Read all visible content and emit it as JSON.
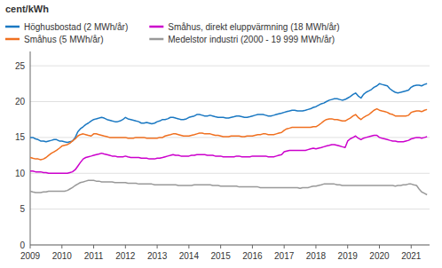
{
  "chart_data": {
    "type": "line",
    "title": "cent/kWh",
    "xlim": [
      2009.0,
      2021.58
    ],
    "ylim": [
      0,
      27
    ],
    "yticks": [
      0,
      5,
      10,
      15,
      20,
      25
    ],
    "xticks": [
      2009,
      2010,
      2011,
      2012,
      2013,
      2014,
      2015,
      2016,
      2017,
      2018,
      2019,
      2020,
      2021
    ],
    "grid": true,
    "legend": "top",
    "x": [
      2009.0,
      2009.08,
      2009.17,
      2009.25,
      2009.33,
      2009.42,
      2009.5,
      2009.58,
      2009.67,
      2009.75,
      2009.83,
      2009.92,
      2010.0,
      2010.08,
      2010.17,
      2010.25,
      2010.33,
      2010.42,
      2010.5,
      2010.58,
      2010.67,
      2010.75,
      2010.83,
      2010.92,
      2011.0,
      2011.08,
      2011.17,
      2011.25,
      2011.33,
      2011.42,
      2011.5,
      2011.58,
      2011.67,
      2011.75,
      2011.83,
      2011.92,
      2012.0,
      2012.08,
      2012.17,
      2012.25,
      2012.33,
      2012.42,
      2012.5,
      2012.58,
      2012.67,
      2012.75,
      2012.83,
      2012.92,
      2013.0,
      2013.08,
      2013.17,
      2013.25,
      2013.33,
      2013.42,
      2013.5,
      2013.58,
      2013.67,
      2013.75,
      2013.83,
      2013.92,
      2014.0,
      2014.08,
      2014.17,
      2014.25,
      2014.33,
      2014.42,
      2014.5,
      2014.58,
      2014.67,
      2014.75,
      2014.83,
      2014.92,
      2015.0,
      2015.08,
      2015.17,
      2015.25,
      2015.33,
      2015.42,
      2015.5,
      2015.58,
      2015.67,
      2015.75,
      2015.83,
      2015.92,
      2016.0,
      2016.08,
      2016.17,
      2016.25,
      2016.33,
      2016.42,
      2016.5,
      2016.58,
      2016.67,
      2016.75,
      2016.83,
      2016.92,
      2017.0,
      2017.08,
      2017.17,
      2017.25,
      2017.33,
      2017.42,
      2017.5,
      2017.58,
      2017.67,
      2017.75,
      2017.83,
      2017.92,
      2018.0,
      2018.08,
      2018.17,
      2018.25,
      2018.33,
      2018.42,
      2018.5,
      2018.58,
      2018.67,
      2018.75,
      2018.83,
      2018.92,
      2019.0,
      2019.08,
      2019.17,
      2019.25,
      2019.33,
      2019.42,
      2019.5,
      2019.58,
      2019.67,
      2019.75,
      2019.83,
      2019.92,
      2020.0,
      2020.08,
      2020.17,
      2020.25,
      2020.33,
      2020.42,
      2020.5,
      2020.58,
      2020.67,
      2020.75,
      2020.83,
      2020.92,
      2021.0,
      2021.08,
      2021.17,
      2021.25,
      2021.33,
      2021.42,
      2021.5
    ],
    "series": [
      {
        "name": "Höghusbostad (2 MWh/år)",
        "color": "#1a78c2",
        "values": [
          15.0,
          15.0,
          14.8,
          14.7,
          14.5,
          14.5,
          14.4,
          14.5,
          14.6,
          14.7,
          14.7,
          14.5,
          14.5,
          14.4,
          14.3,
          14.4,
          14.5,
          15.0,
          15.8,
          16.2,
          16.5,
          16.8,
          17.0,
          17.3,
          17.5,
          17.6,
          17.7,
          17.8,
          17.7,
          17.5,
          17.4,
          17.3,
          17.2,
          17.2,
          17.3,
          17.5,
          17.8,
          17.6,
          17.5,
          17.4,
          17.3,
          17.2,
          17.0,
          17.0,
          17.1,
          17.0,
          16.9,
          17.0,
          17.2,
          17.3,
          17.5,
          17.5,
          17.6,
          17.8,
          17.8,
          17.7,
          17.6,
          17.5,
          17.5,
          17.6,
          17.8,
          17.9,
          18.0,
          18.2,
          18.2,
          18.1,
          18.0,
          18.0,
          18.1,
          18.0,
          17.9,
          17.8,
          17.8,
          17.8,
          17.7,
          17.7,
          17.8,
          17.9,
          18.0,
          18.0,
          17.9,
          17.8,
          17.8,
          17.9,
          18.0,
          18.1,
          18.2,
          18.2,
          18.2,
          18.1,
          18.0,
          18.0,
          18.1,
          18.2,
          18.3,
          18.4,
          18.5,
          18.6,
          18.7,
          18.8,
          18.8,
          18.7,
          18.7,
          18.7,
          18.8,
          18.9,
          19.0,
          19.2,
          19.3,
          19.5,
          19.7,
          19.8,
          20.0,
          20.2,
          20.3,
          20.4,
          20.4,
          20.3,
          20.2,
          20.3,
          20.5,
          20.7,
          21.0,
          21.2,
          20.8,
          20.5,
          21.0,
          21.3,
          21.5,
          21.7,
          22.0,
          22.2,
          22.5,
          22.4,
          22.3,
          22.2,
          21.8,
          21.5,
          21.3,
          21.2,
          21.3,
          21.4,
          21.5,
          21.6,
          22.0,
          22.2,
          22.3,
          22.3,
          22.2,
          22.4,
          22.5
        ]
      },
      {
        "name": "Småhus (5 MWh/år)",
        "color": "#f07020",
        "values": [
          12.2,
          12.1,
          12.0,
          12.0,
          11.9,
          12.0,
          12.2,
          12.5,
          12.8,
          13.0,
          13.2,
          13.5,
          13.8,
          13.9,
          14.0,
          14.2,
          14.5,
          14.8,
          15.2,
          15.4,
          15.5,
          15.4,
          15.3,
          15.2,
          15.5,
          15.5,
          15.4,
          15.3,
          15.2,
          15.1,
          15.0,
          15.0,
          15.0,
          15.0,
          15.0,
          15.0,
          15.0,
          14.9,
          14.9,
          14.9,
          15.0,
          15.0,
          15.0,
          15.0,
          14.9,
          14.9,
          14.9,
          14.9,
          14.9,
          15.0,
          15.0,
          15.2,
          15.3,
          15.4,
          15.5,
          15.5,
          15.4,
          15.3,
          15.2,
          15.2,
          15.2,
          15.3,
          15.4,
          15.5,
          15.6,
          15.6,
          15.5,
          15.5,
          15.5,
          15.4,
          15.3,
          15.3,
          15.2,
          15.1,
          15.1,
          15.1,
          15.2,
          15.2,
          15.2,
          15.2,
          15.1,
          15.1,
          15.2,
          15.2,
          15.2,
          15.3,
          15.4,
          15.4,
          15.5,
          15.5,
          15.4,
          15.4,
          15.4,
          15.5,
          15.6,
          15.7,
          16.0,
          16.2,
          16.3,
          16.4,
          16.4,
          16.4,
          16.4,
          16.4,
          16.4,
          16.4,
          16.4,
          16.5,
          16.5,
          16.7,
          17.0,
          17.3,
          17.5,
          17.6,
          17.6,
          17.5,
          17.5,
          17.4,
          17.3,
          17.3,
          17.5,
          17.7,
          18.0,
          18.2,
          17.8,
          17.5,
          17.8,
          18.0,
          18.2,
          18.5,
          18.8,
          19.0,
          18.8,
          18.7,
          18.6,
          18.5,
          18.3,
          18.2,
          18.0,
          18.0,
          18.0,
          18.0,
          18.0,
          18.1,
          18.5,
          18.6,
          18.7,
          18.7,
          18.6,
          18.8,
          18.9
        ]
      },
      {
        "name": "Småhus, direkt eluppvärmning (18 MWh/år)",
        "color": "#cc00cc",
        "values": [
          10.3,
          10.3,
          10.2,
          10.2,
          10.2,
          10.1,
          10.1,
          10.0,
          10.0,
          10.0,
          10.0,
          10.0,
          10.0,
          10.0,
          10.0,
          10.1,
          10.2,
          10.5,
          11.0,
          11.5,
          12.0,
          12.2,
          12.3,
          12.4,
          12.5,
          12.6,
          12.7,
          12.8,
          12.7,
          12.6,
          12.5,
          12.4,
          12.4,
          12.3,
          12.3,
          12.3,
          12.4,
          12.3,
          12.2,
          12.2,
          12.2,
          12.2,
          12.1,
          12.1,
          12.1,
          12.0,
          12.0,
          12.0,
          12.1,
          12.1,
          12.2,
          12.3,
          12.4,
          12.5,
          12.6,
          12.5,
          12.5,
          12.4,
          12.4,
          12.4,
          12.4,
          12.5,
          12.5,
          12.6,
          12.6,
          12.6,
          12.6,
          12.5,
          12.5,
          12.5,
          12.4,
          12.4,
          12.4,
          12.3,
          12.3,
          12.3,
          12.3,
          12.3,
          12.4,
          12.4,
          12.3,
          12.3,
          12.3,
          12.3,
          12.4,
          12.4,
          12.4,
          12.4,
          12.4,
          12.4,
          12.3,
          12.3,
          12.3,
          12.4,
          12.5,
          12.6,
          13.0,
          13.1,
          13.2,
          13.2,
          13.2,
          13.2,
          13.2,
          13.2,
          13.2,
          13.3,
          13.4,
          13.5,
          13.4,
          13.5,
          13.6,
          13.7,
          13.8,
          13.9,
          14.0,
          14.0,
          13.9,
          13.8,
          13.7,
          13.6,
          14.5,
          14.8,
          15.0,
          15.2,
          14.9,
          14.7,
          14.9,
          15.0,
          15.1,
          15.2,
          15.3,
          15.3,
          15.0,
          14.9,
          14.8,
          14.7,
          14.6,
          14.5,
          14.5,
          14.4,
          14.4,
          14.4,
          14.5,
          14.6,
          14.8,
          14.9,
          15.0,
          15.0,
          14.9,
          15.0,
          15.1
        ]
      },
      {
        "name": "Medelstor industri (2000 - 19 999 MWh/år)",
        "color": "#999999",
        "values": [
          7.5,
          7.4,
          7.3,
          7.3,
          7.3,
          7.4,
          7.4,
          7.5,
          7.5,
          7.5,
          7.5,
          7.5,
          7.5,
          7.5,
          7.6,
          7.8,
          8.0,
          8.3,
          8.5,
          8.7,
          8.8,
          8.9,
          9.0,
          9.0,
          9.0,
          8.9,
          8.9,
          8.8,
          8.8,
          8.8,
          8.8,
          8.8,
          8.7,
          8.7,
          8.7,
          8.7,
          8.7,
          8.6,
          8.6,
          8.6,
          8.6,
          8.5,
          8.5,
          8.5,
          8.5,
          8.5,
          8.5,
          8.4,
          8.4,
          8.4,
          8.4,
          8.4,
          8.4,
          8.4,
          8.4,
          8.4,
          8.3,
          8.3,
          8.3,
          8.3,
          8.3,
          8.3,
          8.4,
          8.4,
          8.4,
          8.4,
          8.4,
          8.4,
          8.4,
          8.3,
          8.3,
          8.3,
          8.2,
          8.2,
          8.2,
          8.2,
          8.2,
          8.2,
          8.2,
          8.1,
          8.1,
          8.1,
          8.1,
          8.1,
          8.1,
          8.1,
          8.1,
          8.0,
          8.0,
          8.0,
          8.0,
          8.0,
          8.0,
          8.0,
          8.0,
          8.0,
          8.0,
          8.0,
          8.0,
          8.0,
          8.0,
          8.0,
          7.9,
          8.0,
          8.0,
          8.0,
          8.1,
          8.2,
          8.2,
          8.3,
          8.4,
          8.5,
          8.5,
          8.5,
          8.5,
          8.5,
          8.4,
          8.4,
          8.3,
          8.3,
          8.3,
          8.3,
          8.3,
          8.3,
          8.3,
          8.3,
          8.3,
          8.3,
          8.3,
          8.3,
          8.3,
          8.3,
          8.3,
          8.3,
          8.3,
          8.3,
          8.3,
          8.3,
          8.2,
          8.3,
          8.3,
          8.4,
          8.4,
          8.5,
          8.5,
          8.4,
          8.3,
          7.8,
          7.4,
          7.2,
          7.0
        ]
      }
    ]
  }
}
